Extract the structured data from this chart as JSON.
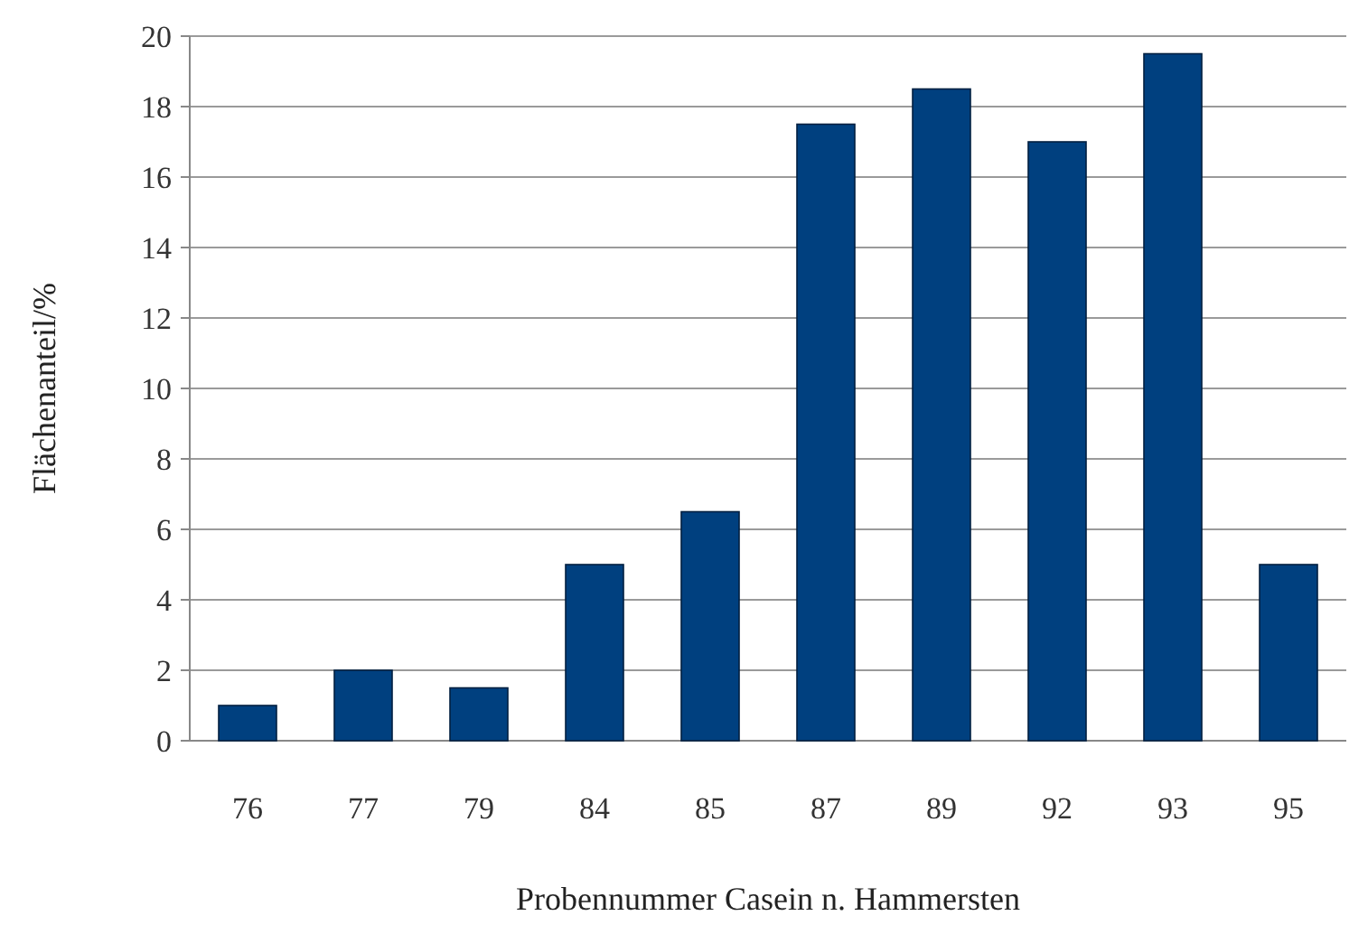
{
  "chart_data": {
    "type": "bar",
    "xlabel": "Probennummer Casein n. Hammersten",
    "ylabel": "Flächenanteil/%",
    "categories": [
      "76",
      "77",
      "79",
      "84",
      "85",
      "87",
      "89",
      "92",
      "93",
      "95"
    ],
    "values": [
      1,
      2,
      1.5,
      5,
      6.5,
      17.5,
      18.5,
      17,
      19.5,
      5
    ],
    "color": "#00407f",
    "ylim": [
      0,
      20
    ],
    "yticks": [
      0,
      2,
      4,
      6,
      8,
      10,
      12,
      14,
      16,
      18,
      20
    ],
    "grid": "y"
  }
}
